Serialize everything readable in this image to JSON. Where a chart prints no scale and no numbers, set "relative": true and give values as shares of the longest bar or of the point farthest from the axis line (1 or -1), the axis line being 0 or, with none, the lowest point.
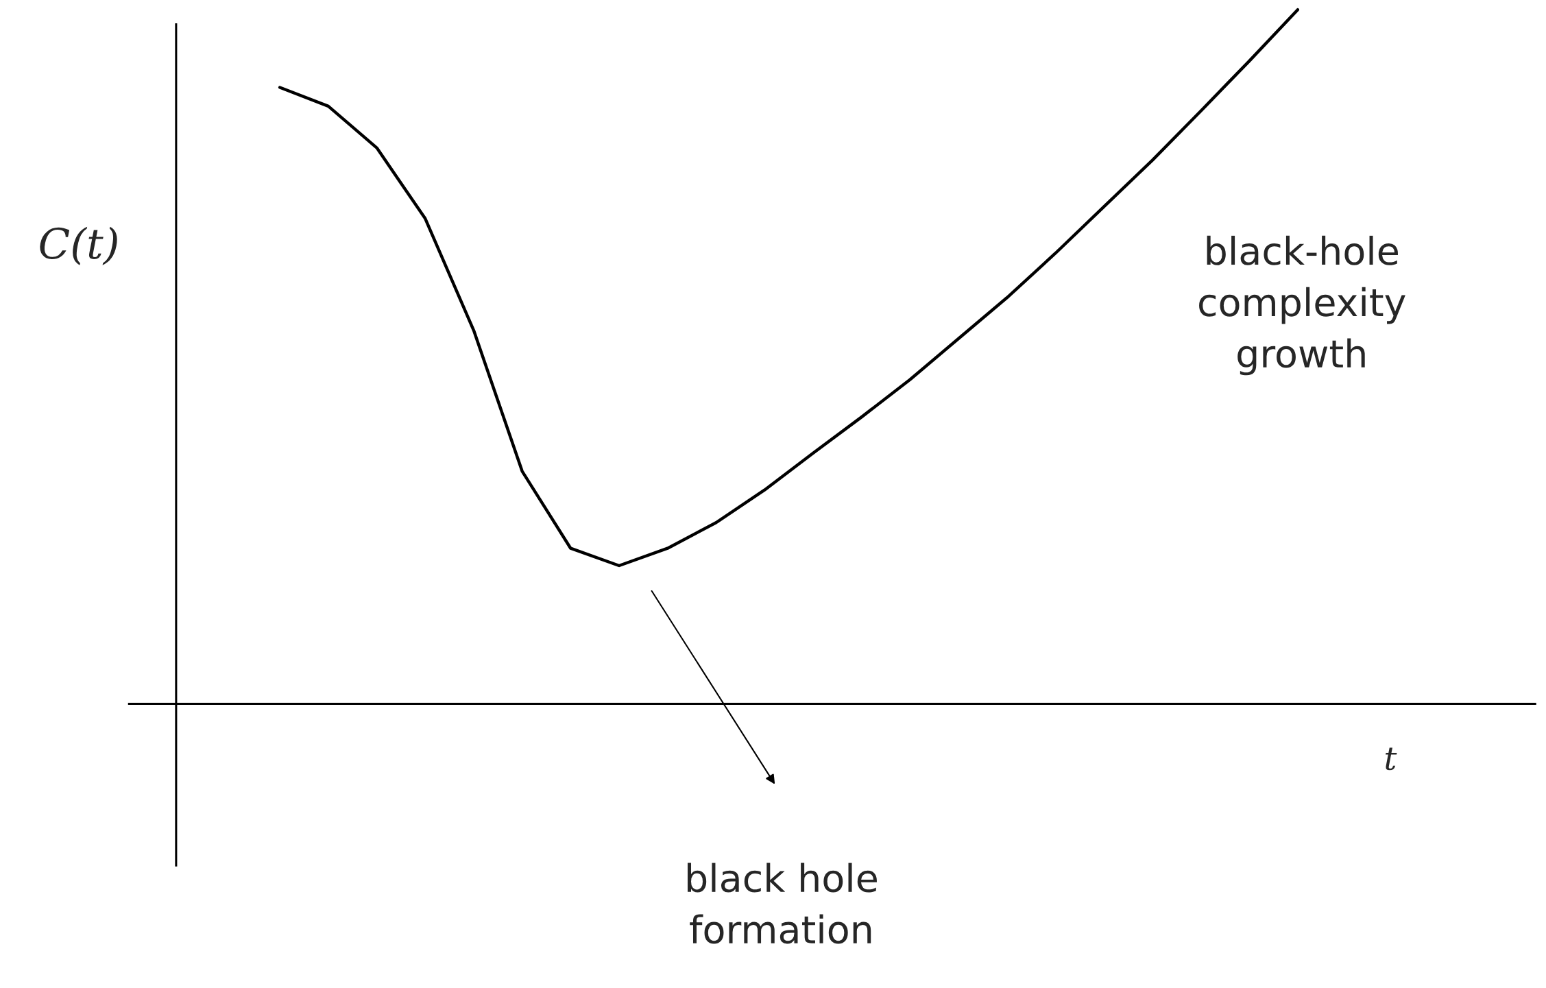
{
  "chart_data": {
    "type": "line",
    "relative": true,
    "categories": [
      null,
      null,
      null,
      null,
      null,
      null,
      null,
      null,
      null,
      null,
      null,
      null,
      null,
      null,
      null,
      null,
      null,
      null,
      null,
      null,
      null,
      null
    ],
    "series": [
      {
        "color": "#000000",
        "values": [
          0.888,
          0.861,
          0.801,
          0.699,
          0.538,
          0.335,
          0.224,
          0.199,
          0.224,
          0.261,
          0.308,
          0.361,
          0.413,
          0.467,
          0.526,
          0.585,
          0.649,
          0.716,
          0.783,
          0.854,
          0.926,
          1.0
        ]
      }
    ],
    "xlabel": "t",
    "ylabel": "C(t)",
    "annotations": [
      "black-hole\ncomplexity\ngrowth",
      "black hole\nformation"
    ]
  }
}
